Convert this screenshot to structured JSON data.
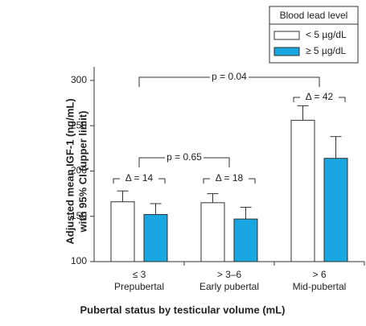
{
  "chart_data": {
    "type": "bar",
    "legend_title": "Blood lead level",
    "x_label": "Pubertal status by testicular volume (mL)",
    "y_label": [
      "Adjusted mean IGF-1 (ng/mL)",
      "with 95% CI (upper limit)"
    ],
    "categories": [
      "≤ 3",
      "> 3–6",
      "> 6"
    ],
    "category_sublabels": [
      "Prepubertal",
      "Early pubertal",
      "Mid-pubertal"
    ],
    "series": [
      {
        "name": "< 5 µg/dL",
        "color": "#ffffff",
        "values": [
          166,
          165,
          256
        ],
        "upper": [
          178,
          175,
          272
        ]
      },
      {
        "name": "≥ 5 µg/dL",
        "color": "#1aa6e0",
        "values": [
          152,
          147,
          214
        ],
        "upper": [
          164,
          160,
          238
        ]
      }
    ],
    "ylim": [
      100,
      315
    ],
    "yticks": [
      100,
      150,
      200,
      250,
      300
    ],
    "annotations": [
      "Δ = 14",
      "Δ = 18",
      "Δ = 42",
      "p = 0.65",
      "p = 0.04"
    ]
  }
}
